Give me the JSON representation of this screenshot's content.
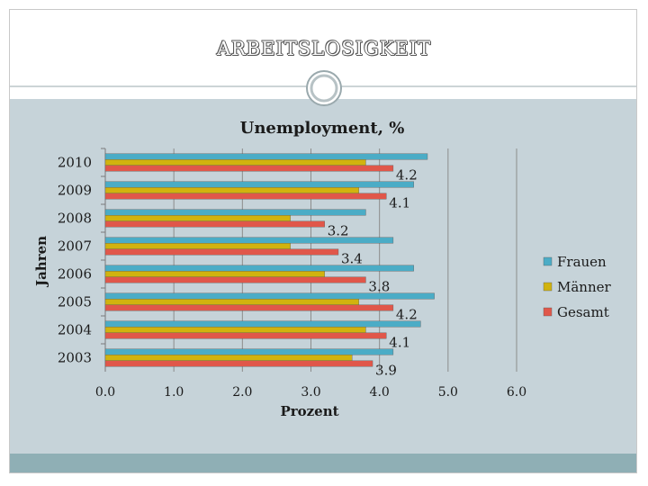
{
  "slide": {
    "title": "arbeitslosigkeit"
  },
  "chart_data": {
    "type": "bar",
    "orientation": "horizontal",
    "title": "Unemployment, %",
    "xlabel": "Prozent",
    "ylabel": "Jahren",
    "xlim": [
      0,
      6
    ],
    "x_ticks": [
      "0.0",
      "1.0",
      "2.0",
      "3.0",
      "4.0",
      "5.0",
      "6.0"
    ],
    "categories": [
      "2010",
      "2009",
      "2008",
      "2007",
      "2006",
      "2005",
      "2004",
      "2003"
    ],
    "series": [
      {
        "name": "Frauen",
        "color": "#4bacc6",
        "values": [
          4.7,
          4.5,
          3.8,
          4.2,
          4.5,
          4.8,
          4.6,
          4.2
        ]
      },
      {
        "name": "Männer",
        "color": "#d1b30e",
        "values": [
          3.8,
          3.7,
          2.7,
          2.7,
          3.2,
          3.7,
          3.8,
          3.6
        ]
      },
      {
        "name": "Gesamt",
        "color": "#e0574a",
        "values": [
          4.2,
          4.1,
          3.2,
          3.4,
          3.8,
          4.2,
          4.1,
          3.9
        ]
      }
    ],
    "data_labels": [
      "4.2",
      "4.1",
      "3.2",
      "3.4",
      "3.8",
      "4.2",
      "4.1",
      "3.9"
    ],
    "grid": true,
    "legend_position": "right"
  }
}
